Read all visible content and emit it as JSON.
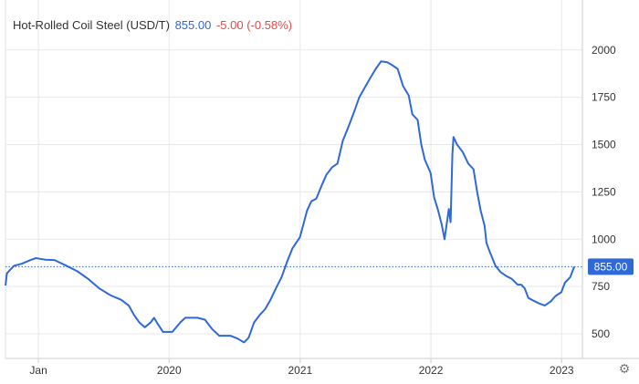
{
  "header": {
    "name": "Hot-Rolled Coil Steel (USD/T)",
    "price": "855.00",
    "change": "-5.00 (-0.58%)"
  },
  "colors": {
    "line": "#2f68d8",
    "change_negative": "#e04a4a",
    "grid": "#e8e8e8",
    "label_bg": "#2f68d8"
  },
  "icons": {
    "settings": "gear-icon"
  },
  "chart_data": {
    "type": "line",
    "title": "Hot-Rolled Coil Steel (USD/T)",
    "xlabel": "",
    "ylabel": "",
    "xlim": [
      "2018-10-01",
      "2023-02-28"
    ],
    "ylim": [
      370,
      2100
    ],
    "yticks": [
      500,
      750,
      1000,
      1250,
      1500,
      1750,
      2000
    ],
    "xticks": [
      {
        "date": "2019-01-01",
        "label": "Jan"
      },
      {
        "date": "2020-01-01",
        "label": "2020"
      },
      {
        "date": "2021-01-01",
        "label": "2021"
      },
      {
        "date": "2022-01-01",
        "label": "2022"
      },
      {
        "date": "2023-01-01",
        "label": "2023"
      }
    ],
    "y_axis_position": "right",
    "grid": "horizontal and vertical",
    "reference_line": {
      "value": 855,
      "label": "855.00",
      "style": "dotted"
    },
    "series": [
      {
        "name": "",
        "points": [
          [
            "2018-10-01",
            755
          ],
          [
            "2018-10-05",
            820
          ],
          [
            "2018-10-25",
            860
          ],
          [
            "2018-11-15",
            870
          ],
          [
            "2018-12-10",
            890
          ],
          [
            "2018-12-25",
            900
          ],
          [
            "2019-01-20",
            892
          ],
          [
            "2019-02-15",
            890
          ],
          [
            "2019-03-20",
            860
          ],
          [
            "2019-04-20",
            830
          ],
          [
            "2019-05-20",
            790
          ],
          [
            "2019-06-20",
            740
          ],
          [
            "2019-07-20",
            705
          ],
          [
            "2019-08-20",
            680
          ],
          [
            "2019-09-10",
            650
          ],
          [
            "2019-09-25",
            600
          ],
          [
            "2019-10-10",
            560
          ],
          [
            "2019-10-25",
            535
          ],
          [
            "2019-11-10",
            560
          ],
          [
            "2019-11-20",
            585
          ],
          [
            "2019-12-01",
            550
          ],
          [
            "2019-12-15",
            510
          ],
          [
            "2020-01-10",
            510
          ],
          [
            "2020-02-01",
            560
          ],
          [
            "2020-02-15",
            585
          ],
          [
            "2020-03-20",
            585
          ],
          [
            "2020-04-10",
            575
          ],
          [
            "2020-04-30",
            525
          ],
          [
            "2020-05-20",
            490
          ],
          [
            "2020-06-20",
            490
          ],
          [
            "2020-07-10",
            475
          ],
          [
            "2020-07-28",
            455
          ],
          [
            "2020-08-10",
            480
          ],
          [
            "2020-08-25",
            560
          ],
          [
            "2020-09-10",
            600
          ],
          [
            "2020-09-25",
            630
          ],
          [
            "2020-10-10",
            680
          ],
          [
            "2020-10-25",
            740
          ],
          [
            "2020-11-10",
            800
          ],
          [
            "2020-11-25",
            880
          ],
          [
            "2020-12-10",
            950
          ],
          [
            "2020-12-31",
            1010
          ],
          [
            "2021-01-10",
            1080
          ],
          [
            "2021-01-20",
            1150
          ],
          [
            "2021-02-01",
            1200
          ],
          [
            "2021-02-15",
            1215
          ],
          [
            "2021-03-01",
            1280
          ],
          [
            "2021-03-15",
            1340
          ],
          [
            "2021-03-31",
            1380
          ],
          [
            "2021-04-15",
            1400
          ],
          [
            "2021-04-30",
            1520
          ],
          [
            "2021-05-15",
            1590
          ],
          [
            "2021-05-31",
            1670
          ],
          [
            "2021-06-15",
            1750
          ],
          [
            "2021-06-30",
            1800
          ],
          [
            "2021-07-15",
            1850
          ],
          [
            "2021-07-31",
            1900
          ],
          [
            "2021-08-15",
            1940
          ],
          [
            "2021-09-01",
            1935
          ],
          [
            "2021-09-15",
            1920
          ],
          [
            "2021-09-30",
            1900
          ],
          [
            "2021-10-15",
            1810
          ],
          [
            "2021-10-31",
            1760
          ],
          [
            "2021-11-10",
            1660
          ],
          [
            "2021-11-25",
            1630
          ],
          [
            "2021-12-05",
            1500
          ],
          [
            "2021-12-15",
            1420
          ],
          [
            "2021-12-31",
            1350
          ],
          [
            "2022-01-10",
            1220
          ],
          [
            "2022-01-20",
            1160
          ],
          [
            "2022-01-31",
            1080
          ],
          [
            "2022-02-08",
            1000
          ],
          [
            "2022-02-14",
            1080
          ],
          [
            "2022-02-20",
            1160
          ],
          [
            "2022-02-25",
            1090
          ],
          [
            "2022-03-02",
            1450
          ],
          [
            "2022-03-05",
            1540
          ],
          [
            "2022-03-15",
            1500
          ],
          [
            "2022-03-31",
            1460
          ],
          [
            "2022-04-15",
            1400
          ],
          [
            "2022-04-30",
            1370
          ],
          [
            "2022-05-10",
            1250
          ],
          [
            "2022-05-20",
            1150
          ],
          [
            "2022-05-31",
            1070
          ],
          [
            "2022-06-05",
            980
          ],
          [
            "2022-06-15",
            930
          ],
          [
            "2022-06-30",
            860
          ],
          [
            "2022-07-15",
            825
          ],
          [
            "2022-07-31",
            805
          ],
          [
            "2022-08-15",
            790
          ],
          [
            "2022-08-31",
            760
          ],
          [
            "2022-09-10",
            760
          ],
          [
            "2022-09-20",
            740
          ],
          [
            "2022-09-30",
            690
          ],
          [
            "2022-10-15",
            675
          ],
          [
            "2022-10-31",
            660
          ],
          [
            "2022-11-15",
            650
          ],
          [
            "2022-12-01",
            670
          ],
          [
            "2022-12-15",
            700
          ],
          [
            "2022-12-31",
            720
          ],
          [
            "2023-01-10",
            770
          ],
          [
            "2023-01-25",
            800
          ],
          [
            "2023-02-05",
            855
          ]
        ]
      }
    ]
  }
}
